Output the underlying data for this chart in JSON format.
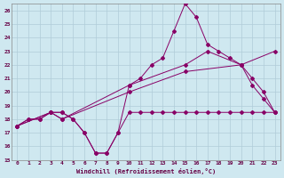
{
  "xlabel": "Windchill (Refroidissement éolien,°C)",
  "background_color": "#cfe8f0",
  "grid_color": "#b0ccd8",
  "line_color": "#880066",
  "xlim": [
    -0.5,
    23.5
  ],
  "ylim": [
    15,
    26.5
  ],
  "yticks": [
    15,
    16,
    17,
    18,
    19,
    20,
    21,
    22,
    23,
    24,
    25,
    26
  ],
  "xticks": [
    0,
    1,
    2,
    3,
    4,
    5,
    6,
    7,
    8,
    9,
    10,
    11,
    12,
    13,
    14,
    15,
    16,
    17,
    18,
    19,
    20,
    21,
    22,
    23
  ],
  "s1_x": [
    0,
    1,
    2,
    3,
    4,
    5,
    6,
    7,
    8,
    9,
    10,
    11,
    12,
    13,
    14,
    15,
    16,
    17,
    18,
    19,
    20,
    21,
    22,
    23
  ],
  "s1_y": [
    17.5,
    18.0,
    18.0,
    18.5,
    18.5,
    18.0,
    17.0,
    15.5,
    15.5,
    17.0,
    18.5,
    18.5,
    18.5,
    18.5,
    18.5,
    18.5,
    18.5,
    18.5,
    18.5,
    18.5,
    18.5,
    18.5,
    18.5,
    18.5
  ],
  "s2_x": [
    0,
    1,
    2,
    3,
    4,
    5,
    6,
    7,
    8,
    9,
    10,
    11,
    12,
    13,
    14,
    15,
    16,
    17,
    18,
    19,
    20,
    21,
    22,
    23
  ],
  "s2_y": [
    17.5,
    18.0,
    18.0,
    18.5,
    18.5,
    18.0,
    17.0,
    15.5,
    15.5,
    17.0,
    20.5,
    21.0,
    22.0,
    22.5,
    24.5,
    26.5,
    25.5,
    23.5,
    23.0,
    22.5,
    22.0,
    20.5,
    19.5,
    18.5
  ],
  "s3_x": [
    0,
    3,
    4,
    10,
    15,
    17,
    20,
    21,
    22,
    23
  ],
  "s3_y": [
    17.5,
    18.5,
    18.0,
    20.5,
    22.0,
    23.0,
    22.0,
    21.0,
    20.0,
    18.5
  ],
  "s4_x": [
    0,
    3,
    4,
    10,
    15,
    20,
    23
  ],
  "s4_y": [
    17.5,
    18.5,
    18.0,
    20.0,
    21.5,
    22.0,
    23.0
  ]
}
